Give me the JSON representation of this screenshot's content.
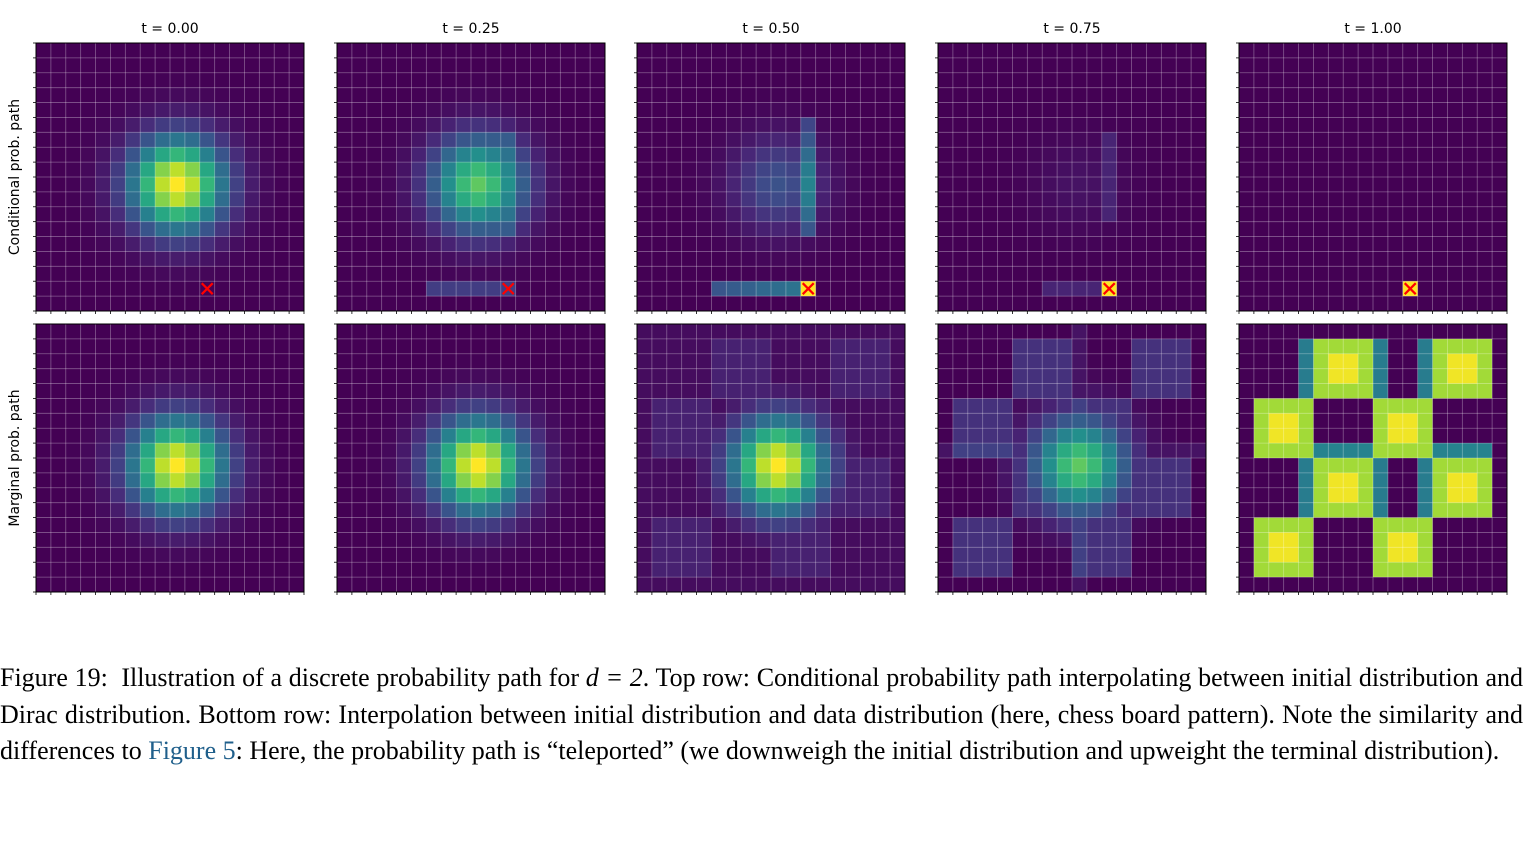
{
  "chart_data": {
    "type": "heatmap",
    "grid_size": 18,
    "colormap": "viridis",
    "grid": true,
    "column_titles": [
      "t = 0.00",
      "t = 0.25",
      "t = 0.50",
      "t = 0.75",
      "t = 1.00"
    ],
    "times": [
      0.0,
      0.25,
      0.5,
      0.75,
      1.0
    ],
    "row_labels": [
      "Conditional prob. path",
      "Marginal prob. path"
    ],
    "initial_distribution": {
      "kind": "gaussian",
      "center": [
        9,
        9
      ],
      "sigma": 2.2
    },
    "dirac_target": [
      11.5,
      16.5
    ],
    "dirac_marker": "x",
    "marker_color": "#ff0000",
    "terminal_distribution": "chess board pattern"
  },
  "caption": {
    "label": "Figure 19:",
    "text_before_math": "Illustration of a discrete probability path for",
    "math": "d = 2",
    "text_after_math": ". Top row: Conditional probability path interpolating between initial distribution and Dirac distribution. Bottom row: Interpolation between initial distribution and data distribution (here, chess board pattern). Note the similarity and differences to",
    "ref": "Figure 5",
    "text_end": ": Here, the probability path is “teleported” (we downweigh the initial distribution and upweight the terminal distribution)."
  }
}
